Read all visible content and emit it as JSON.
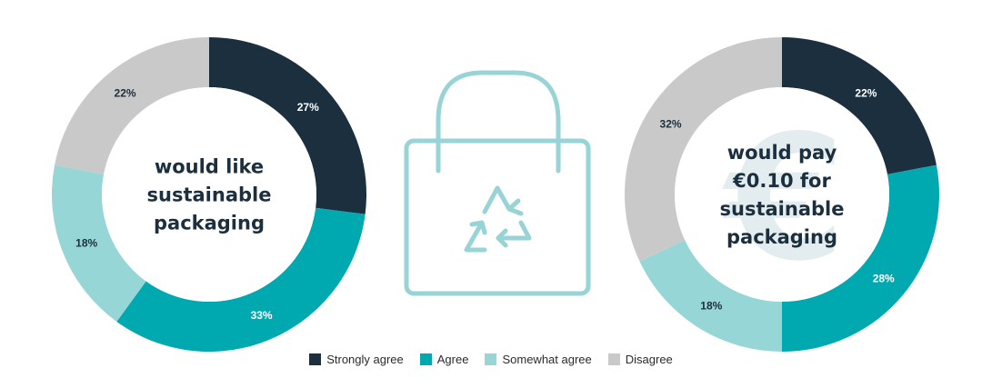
{
  "colors": {
    "strongly_agree": "#1c2f3e",
    "agree": "#00a8b0",
    "somewhat_agree": "#97d6d6",
    "disagree": "#c9c9c9",
    "icon": "#98d3d6",
    "center_text": "#1c2f3e",
    "euro_watermark": "#e3ecee"
  },
  "icon": {
    "name": "shopping-bag-recycle-icon"
  },
  "chart_data": [
    {
      "type": "pie",
      "style": "donut",
      "center_label": [
        "would like",
        "sustainable",
        "packaging"
      ],
      "categories": [
        "Strongly agree",
        "Agree",
        "Somewhat agree",
        "Disagree"
      ],
      "values": [
        27,
        33,
        18,
        22
      ],
      "labels": [
        "27%",
        "33%",
        "18%",
        "22%"
      ],
      "legend_position": "bottom"
    },
    {
      "type": "pie",
      "style": "donut",
      "center_label": [
        "would pay",
        "€0.10 for",
        "sustainable",
        "packaging"
      ],
      "watermark": "€",
      "categories": [
        "Strongly agree",
        "Agree",
        "Somewhat agree",
        "Disagree"
      ],
      "values": [
        22,
        28,
        18,
        32
      ],
      "labels": [
        "22%",
        "28%",
        "18%",
        "32%"
      ],
      "legend_position": "bottom"
    }
  ],
  "legend": [
    {
      "label": "Strongly agree",
      "color": "#1c2f3e"
    },
    {
      "label": "Agree",
      "color": "#00a8b0"
    },
    {
      "label": "Somewhat agree",
      "color": "#97d6d6"
    },
    {
      "label": "Disagree",
      "color": "#c9c9c9"
    }
  ]
}
